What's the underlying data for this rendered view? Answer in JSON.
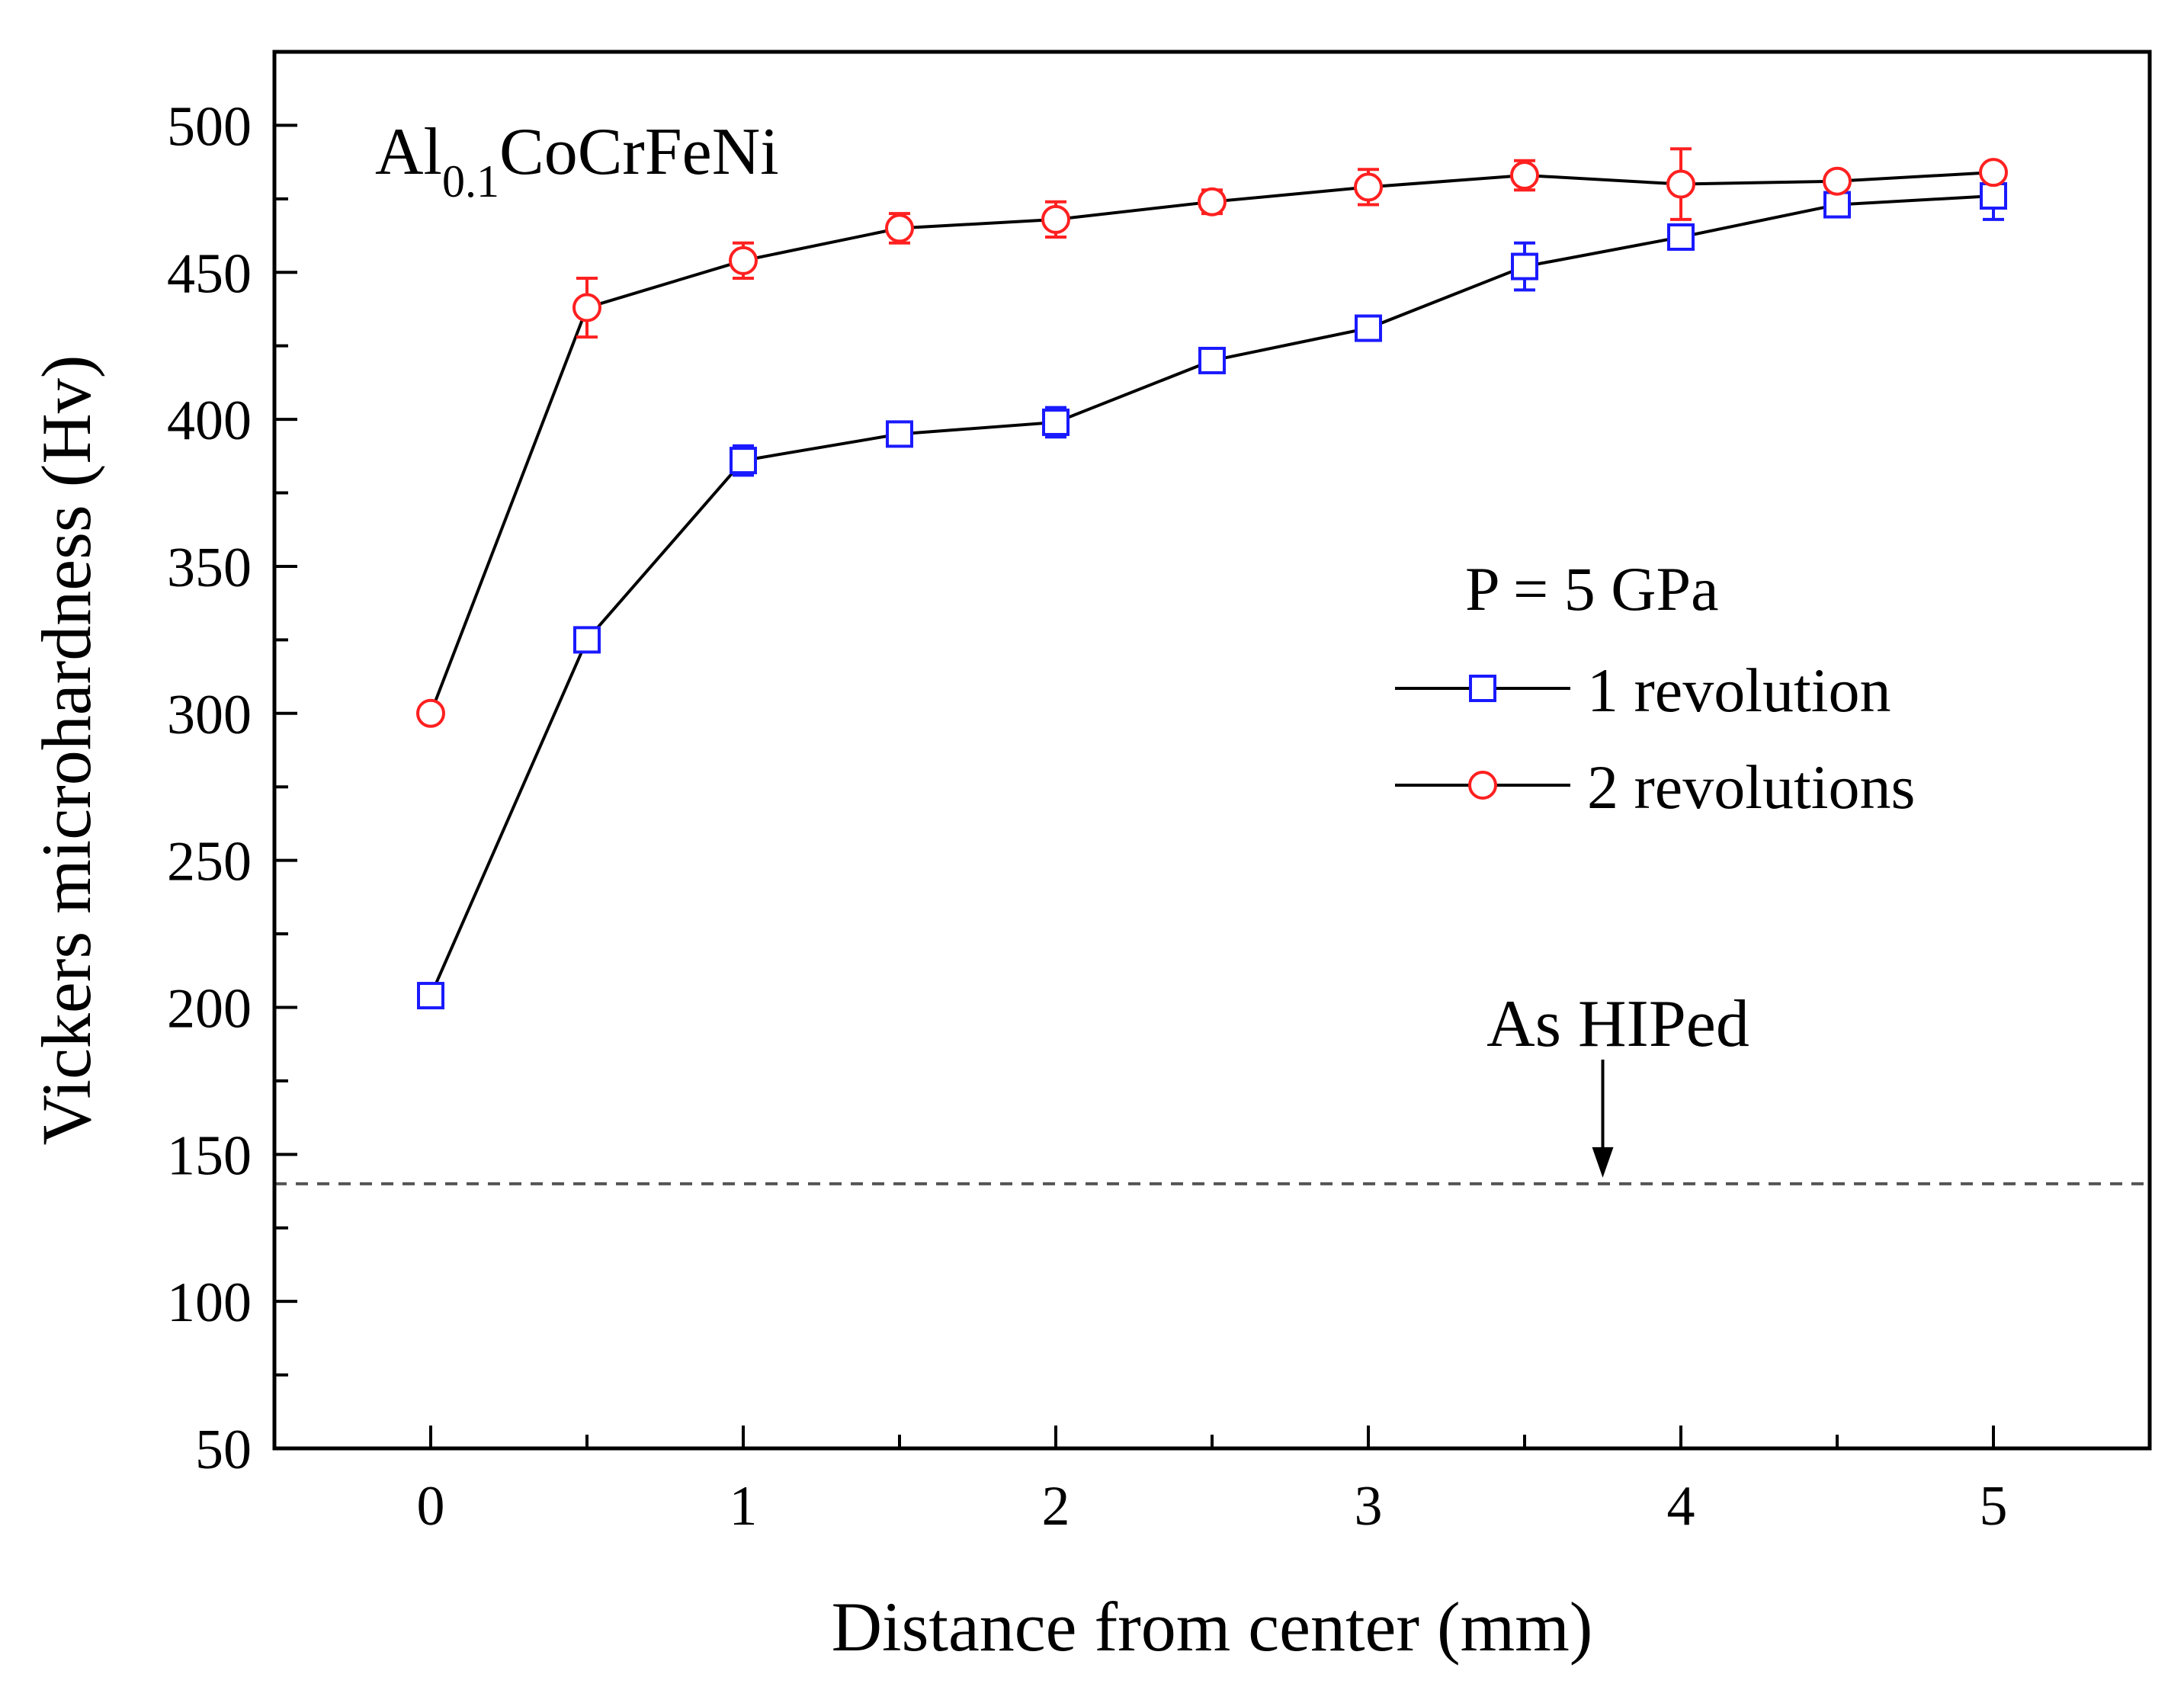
{
  "chart_data": {
    "type": "line",
    "title": "",
    "xlabel": "Distance from center (mm)",
    "ylabel": "Vickers microhardness (Hv)",
    "xlim": [
      -0.5,
      5.5
    ],
    "ylim": [
      50,
      525
    ],
    "x_ticks": [
      0,
      1,
      2,
      3,
      4,
      5
    ],
    "y_ticks": [
      50,
      100,
      150,
      200,
      250,
      300,
      350,
      400,
      450,
      500
    ],
    "x": [
      0,
      0.5,
      1,
      1.5,
      2,
      2.5,
      3,
      3.5,
      4,
      4.5,
      5
    ],
    "series": [
      {
        "name": "1 revolution",
        "marker": "square",
        "color": "#1a1aff",
        "values": [
          204,
          325,
          386,
          395,
          399,
          420,
          431,
          452,
          462,
          473,
          476
        ],
        "errors": [
          2,
          2,
          5,
          3,
          5,
          2,
          3,
          8,
          3,
          2,
          8
        ]
      },
      {
        "name": "2 revolutions",
        "marker": "circle",
        "color": "#ff2020",
        "values": [
          300,
          438,
          454,
          465,
          468,
          474,
          479,
          483,
          480,
          481,
          484
        ],
        "errors": [
          1,
          10,
          6,
          5,
          6,
          4,
          6,
          5,
          12,
          2,
          2
        ]
      }
    ],
    "reference_line": {
      "value": 140,
      "label": "As HIPed",
      "style": "dashed"
    },
    "annotation": {
      "base": "Al",
      "subscript": "0.1",
      "rest": "CoCrFeNi"
    },
    "legend": {
      "title": "P = 5 GPa",
      "entries": [
        "1 revolution",
        "2 revolutions"
      ],
      "placement": "right-middle"
    },
    "colors": {
      "line": "#000000",
      "axis": "#000000",
      "reference": "#555555"
    }
  }
}
